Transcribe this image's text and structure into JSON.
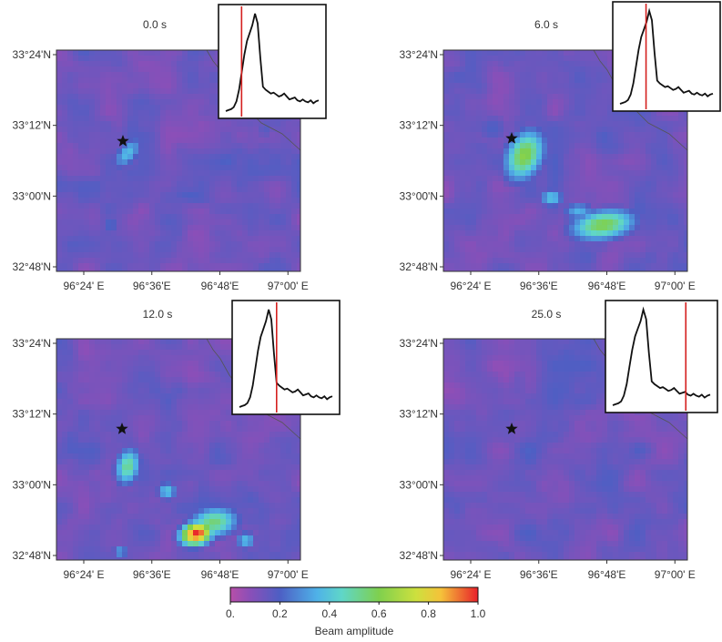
{
  "panels": [
    {
      "time_label": "0.0 s",
      "lat_labels": [
        "33°24'N",
        "33°12'N",
        "33°00'N",
        "32°48'N"
      ],
      "lon_labels": [
        "96°24' E",
        "96°36'E",
        "96°48'E",
        "97°00' E"
      ],
      "marker_icon": "star-icon",
      "inset_time_marker": 0.17,
      "blobs": [
        {
          "u": 0.29,
          "v": 0.46,
          "rx": 0.05,
          "ry": 0.1,
          "amp": 0.38,
          "rot": 35
        },
        {
          "u": 0.22,
          "v": 0.78,
          "rx": 0.05,
          "ry": 0.07,
          "amp": 0.22,
          "rot": 0
        },
        {
          "u": 0.55,
          "v": 0.65,
          "rx": 0.18,
          "ry": 0.07,
          "amp": 0.2,
          "rot": 10
        },
        {
          "u": 0.85,
          "v": 0.35,
          "rx": 0.06,
          "ry": 0.08,
          "amp": 0.18,
          "rot": 0
        }
      ]
    },
    {
      "time_label": "6.0 s",
      "lat_labels": [
        "33°24'N",
        "33°12'N",
        "33°00'N",
        "32°48'N"
      ],
      "lon_labels": [
        "96°24' E",
        "96°36'E",
        "96°48'E",
        "97°00' E"
      ],
      "marker_icon": "star-icon",
      "inset_time_marker": 0.28,
      "blobs": [
        {
          "u": 0.33,
          "v": 0.47,
          "rx": 0.09,
          "ry": 0.14,
          "amp": 0.62,
          "rot": 20
        },
        {
          "u": 0.44,
          "v": 0.66,
          "rx": 0.06,
          "ry": 0.05,
          "amp": 0.4,
          "rot": 0
        },
        {
          "u": 0.65,
          "v": 0.78,
          "rx": 0.16,
          "ry": 0.08,
          "amp": 0.6,
          "rot": -10
        },
        {
          "u": 0.55,
          "v": 0.72,
          "rx": 0.08,
          "ry": 0.05,
          "amp": 0.35,
          "rot": 0
        },
        {
          "u": 0.2,
          "v": 0.35,
          "rx": 0.1,
          "ry": 0.1,
          "amp": 0.2,
          "rot": 0
        }
      ]
    },
    {
      "time_label": "12.0 s",
      "lat_labels": [
        "33°24'N",
        "33°12'N",
        "33°00'N",
        "32°48'N"
      ],
      "lon_labels": [
        "96°24' E",
        "96°36'E",
        "96°48'E",
        "97°00' E"
      ],
      "marker_icon": "star-icon",
      "inset_time_marker": 0.4,
      "blobs": [
        {
          "u": 0.29,
          "v": 0.57,
          "rx": 0.06,
          "ry": 0.1,
          "amp": 0.52,
          "rot": 10
        },
        {
          "u": 0.45,
          "v": 0.68,
          "rx": 0.05,
          "ry": 0.05,
          "amp": 0.4,
          "rot": 0
        },
        {
          "u": 0.57,
          "v": 0.87,
          "rx": 0.08,
          "ry": 0.06,
          "amp": 1.0,
          "rot": -20
        },
        {
          "u": 0.64,
          "v": 0.82,
          "rx": 0.12,
          "ry": 0.08,
          "amp": 0.55,
          "rot": -10
        },
        {
          "u": 0.77,
          "v": 0.9,
          "rx": 0.05,
          "ry": 0.05,
          "amp": 0.38,
          "rot": 0
        },
        {
          "u": 0.26,
          "v": 0.95,
          "rx": 0.04,
          "ry": 0.04,
          "amp": 0.32,
          "rot": 0
        }
      ]
    },
    {
      "time_label": "25.0 s",
      "lat_labels": [
        "33°24'N",
        "33°12'N",
        "33°00'N",
        "32°48'N"
      ],
      "lon_labels": [
        "96°24' E",
        "96°36'E",
        "96°48'E",
        "97°00' E"
      ],
      "marker_icon": "star-icon",
      "inset_time_marker": 0.75,
      "blobs": [
        {
          "u": 0.3,
          "v": 0.55,
          "rx": 0.08,
          "ry": 0.08,
          "amp": 0.16,
          "rot": 0
        },
        {
          "u": 0.6,
          "v": 0.7,
          "rx": 0.12,
          "ry": 0.08,
          "amp": 0.15,
          "rot": 0
        },
        {
          "u": 0.8,
          "v": 0.3,
          "rx": 0.08,
          "ry": 0.08,
          "amp": 0.14,
          "rot": 0
        }
      ]
    }
  ],
  "inset_trace": [
    0.0,
    0.01,
    0.02,
    0.04,
    0.1,
    0.22,
    0.4,
    0.58,
    0.72,
    0.8,
    0.88,
    1.0,
    0.9,
    0.55,
    0.25,
    0.22,
    0.2,
    0.18,
    0.19,
    0.17,
    0.15,
    0.16,
    0.18,
    0.15,
    0.12,
    0.13,
    0.14,
    0.11,
    0.1,
    0.12,
    0.1,
    0.09,
    0.11,
    0.08,
    0.1,
    0.11
  ],
  "colorbar": {
    "title": "Beam amplitude",
    "ticks": [
      {
        "value": 0.0,
        "label": "0."
      },
      {
        "value": 0.2,
        "label": "0.2"
      },
      {
        "value": 0.4,
        "label": "0.4"
      },
      {
        "value": 0.6,
        "label": "0.6"
      },
      {
        "value": 0.8,
        "label": "0.8"
      },
      {
        "value": 1.0,
        "label": "1.0"
      }
    ],
    "stops": [
      {
        "value": 0.0,
        "color": "#b84fa8"
      },
      {
        "value": 0.08,
        "color": "#8a4fb8"
      },
      {
        "value": 0.2,
        "color": "#4d5fc4"
      },
      {
        "value": 0.35,
        "color": "#4fb2e8"
      },
      {
        "value": 0.45,
        "color": "#5fd6c8"
      },
      {
        "value": 0.6,
        "color": "#7fd04e"
      },
      {
        "value": 0.75,
        "color": "#cde03e"
      },
      {
        "value": 0.85,
        "color": "#f5c23a"
      },
      {
        "value": 1.0,
        "color": "#e8202a"
      }
    ]
  },
  "colors": {
    "frame": "#333333",
    "inset_trace": "#111111",
    "inset_marker": "#d4201f",
    "fault_line": "#555555"
  }
}
